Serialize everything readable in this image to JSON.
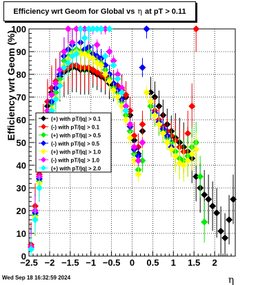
{
  "title": {
    "prefix": "Efficiency wrt Geom for Global vs",
    "symbol": "η",
    "suffix": "at pT > 0.11"
  },
  "timestamp": "Wed Sep 18 16:32:59 2024",
  "chart_data": {
    "type": "scatter",
    "title": "Efficiency wrt Geom for Global vs η at pT > 0.11",
    "xlabel": "η",
    "ylabel": "Efficiency wrt Geom (%)",
    "xlim": [
      -2.5,
      2.5
    ],
    "ylim": [
      0,
      100
    ],
    "xticks": [
      "-2.5",
      "-2",
      "-1.5",
      "-1",
      "-0.5",
      "0",
      "0.5",
      "1",
      "1.5",
      "2"
    ],
    "yticks": [
      "0",
      "10",
      "20",
      "30",
      "40",
      "50",
      "60",
      "70",
      "80",
      "90",
      "100"
    ],
    "grid": true,
    "legend_position": "left-middle",
    "series": [
      {
        "name": "(+) with pT/|q| > 0.1",
        "color": "#000000",
        "points": [
          [
            -2.45,
            4
          ],
          [
            -2.35,
            20
          ],
          [
            -2.25,
            35
          ],
          [
            -2.15,
            55
          ],
          [
            -2.05,
            66
          ],
          [
            -1.95,
            72
          ],
          [
            -1.85,
            76
          ],
          [
            -1.75,
            79
          ],
          [
            -1.65,
            81
          ],
          [
            -1.55,
            82
          ],
          [
            -1.45,
            83
          ],
          [
            -1.35,
            83
          ],
          [
            -1.25,
            82
          ],
          [
            -1.15,
            82
          ],
          [
            -1.05,
            82
          ],
          [
            -0.95,
            81
          ],
          [
            -0.85,
            80
          ],
          [
            -0.75,
            79
          ],
          [
            -0.65,
            78
          ],
          [
            -0.55,
            76
          ],
          [
            -0.45,
            75
          ],
          [
            -0.35,
            74
          ],
          [
            -0.25,
            73
          ],
          [
            -0.15,
            70
          ],
          [
            -0.05,
            62
          ],
          [
            0.05,
            51
          ],
          [
            0.15,
            45
          ],
          [
            0.25,
            55
          ],
          [
            0.45,
            72
          ],
          [
            0.55,
            70
          ],
          [
            0.65,
            66
          ],
          [
            0.75,
            62
          ],
          [
            0.85,
            58
          ],
          [
            0.95,
            55
          ],
          [
            1.05,
            52
          ],
          [
            1.15,
            50
          ],
          [
            1.25,
            48
          ],
          [
            1.35,
            46
          ],
          [
            1.45,
            43
          ],
          [
            1.55,
            35
          ],
          [
            1.65,
            30
          ],
          [
            1.75,
            27
          ],
          [
            1.85,
            25
          ],
          [
            1.95,
            22
          ],
          [
            2.05,
            19
          ],
          [
            2.15,
            11
          ],
          [
            2.25,
            8
          ],
          [
            2.35,
            16
          ],
          [
            2.45,
            25
          ]
        ]
      },
      {
        "name": "(-) with pT/|q| > 0.1",
        "color": "#ff0000",
        "points": [
          [
            -2.45,
            5
          ],
          [
            -2.35,
            22
          ],
          [
            -2.25,
            36
          ],
          [
            -2.15,
            57
          ],
          [
            -2.05,
            68
          ],
          [
            -1.95,
            74
          ],
          [
            -1.85,
            77
          ],
          [
            -1.75,
            80
          ],
          [
            -1.65,
            82
          ],
          [
            -1.55,
            83
          ],
          [
            -1.45,
            84
          ],
          [
            -1.35,
            84
          ],
          [
            -1.25,
            83
          ],
          [
            -1.15,
            83
          ],
          [
            -1.05,
            83
          ],
          [
            -0.95,
            82
          ],
          [
            -0.85,
            81
          ],
          [
            -0.75,
            80
          ],
          [
            -0.65,
            79
          ],
          [
            -0.55,
            78
          ],
          [
            -0.45,
            76
          ],
          [
            -0.35,
            75
          ],
          [
            -0.25,
            73
          ],
          [
            -0.15,
            71
          ],
          [
            -0.05,
            64
          ],
          [
            0.05,
            53
          ],
          [
            0.15,
            48
          ],
          [
            0.25,
            58
          ],
          [
            0.45,
            66
          ],
          [
            0.55,
            64
          ],
          [
            0.65,
            60
          ],
          [
            0.75,
            57
          ],
          [
            0.85,
            55
          ],
          [
            0.95,
            53
          ],
          [
            1.05,
            51
          ],
          [
            1.15,
            48
          ],
          [
            1.25,
            46
          ],
          [
            1.35,
            54
          ],
          [
            1.45,
            66
          ],
          [
            1.55,
            100
          ]
        ]
      },
      {
        "name": "(+) with pT/|q| > 0.5",
        "color": "#00ee00",
        "points": [
          [
            -2.45,
            3
          ],
          [
            -2.35,
            18
          ],
          [
            -2.25,
            33
          ],
          [
            -2.15,
            50
          ],
          [
            -2.05,
            60
          ],
          [
            -1.95,
            67
          ],
          [
            -1.85,
            72
          ],
          [
            -1.75,
            78
          ],
          [
            -1.65,
            86
          ],
          [
            -1.55,
            88
          ],
          [
            -1.45,
            90
          ],
          [
            -1.35,
            91
          ],
          [
            -1.25,
            90
          ],
          [
            -1.15,
            89
          ],
          [
            -1.05,
            90
          ],
          [
            -0.95,
            88
          ],
          [
            -0.85,
            87
          ],
          [
            -0.75,
            85
          ],
          [
            -0.65,
            82
          ],
          [
            -0.55,
            78
          ],
          [
            -0.45,
            74
          ],
          [
            -0.35,
            72
          ],
          [
            -0.25,
            68
          ],
          [
            -0.15,
            62
          ],
          [
            -0.05,
            55
          ],
          [
            0.05,
            45
          ],
          [
            0.15,
            38
          ],
          [
            0.25,
            42
          ],
          [
            0.45,
            66
          ],
          [
            0.55,
            62
          ],
          [
            0.65,
            58
          ],
          [
            0.75,
            55
          ],
          [
            0.85,
            52
          ],
          [
            0.95,
            50
          ],
          [
            1.05,
            46
          ],
          [
            1.15,
            43
          ],
          [
            1.25,
            42
          ],
          [
            1.35,
            44
          ],
          [
            1.45,
            48
          ],
          [
            1.55,
            50
          ],
          [
            1.65,
            35
          ],
          [
            1.75,
            15
          ]
        ]
      },
      {
        "name": "(-) with pT/|q| > 0.5",
        "color": "#0000ff",
        "points": [
          [
            -2.45,
            4
          ],
          [
            -2.35,
            19
          ],
          [
            -2.25,
            34
          ],
          [
            -2.15,
            52
          ],
          [
            -2.05,
            62
          ],
          [
            -1.95,
            68
          ],
          [
            -1.85,
            74
          ],
          [
            -1.75,
            80
          ],
          [
            -1.65,
            88
          ],
          [
            -1.55,
            91
          ],
          [
            -1.45,
            93
          ],
          [
            -1.35,
            90
          ],
          [
            -1.25,
            94
          ],
          [
            -1.15,
            91
          ],
          [
            -1.05,
            92
          ],
          [
            -0.95,
            89
          ],
          [
            -0.85,
            88
          ],
          [
            -0.75,
            87
          ],
          [
            -0.65,
            84
          ],
          [
            -0.55,
            80
          ],
          [
            -0.45,
            76
          ],
          [
            -0.35,
            73
          ],
          [
            -0.25,
            69
          ],
          [
            -0.15,
            64
          ],
          [
            -0.05,
            57
          ],
          [
            0.05,
            47
          ],
          [
            0.15,
            44
          ],
          [
            0.25,
            83
          ],
          [
            0.35,
            100
          ],
          [
            0.45,
            68
          ],
          [
            0.55,
            63
          ],
          [
            0.65,
            59
          ],
          [
            0.75,
            56
          ],
          [
            0.85,
            53
          ],
          [
            0.95,
            48
          ]
        ]
      },
      {
        "name": "(+) with pT/|q| > 1.0",
        "color": "#ffff00",
        "points": [
          [
            -2.45,
            3
          ],
          [
            -2.35,
            17
          ],
          [
            -2.25,
            32
          ],
          [
            -2.15,
            48
          ],
          [
            -2.05,
            58
          ],
          [
            -1.95,
            65
          ],
          [
            -1.85,
            70
          ],
          [
            -1.75,
            76
          ],
          [
            -1.65,
            84
          ],
          [
            -1.55,
            87
          ],
          [
            -1.45,
            89
          ],
          [
            -1.35,
            90
          ],
          [
            -1.25,
            89
          ],
          [
            -1.15,
            89
          ],
          [
            -1.05,
            88
          ],
          [
            -0.95,
            87
          ],
          [
            -0.85,
            85
          ],
          [
            -0.75,
            84
          ],
          [
            -0.65,
            80
          ],
          [
            -0.55,
            77
          ],
          [
            -0.45,
            73
          ],
          [
            -0.35,
            70
          ],
          [
            -0.25,
            66
          ],
          [
            -0.15,
            60
          ],
          [
            -0.05,
            52
          ],
          [
            0.05,
            42
          ],
          [
            0.15,
            36
          ],
          [
            0.25,
            50
          ],
          [
            0.35,
            72
          ],
          [
            0.45,
            68
          ],
          [
            0.55,
            62
          ],
          [
            0.65,
            58
          ],
          [
            0.75,
            54
          ],
          [
            0.85,
            50
          ],
          [
            0.95,
            47
          ],
          [
            1.05,
            44
          ],
          [
            1.15,
            41
          ],
          [
            1.25,
            40
          ],
          [
            1.35,
            42
          ],
          [
            1.45,
            45
          ],
          [
            1.55,
            47
          ]
        ]
      },
      {
        "name": "(-) with pT/|q| > 1.0",
        "color": "#ff00ff",
        "points": [
          [
            -2.45,
            4
          ],
          [
            -2.35,
            20
          ],
          [
            -2.25,
            35
          ],
          [
            -2.15,
            54
          ],
          [
            -2.05,
            64
          ],
          [
            -1.95,
            71
          ],
          [
            -1.85,
            76
          ],
          [
            -1.75,
            82
          ],
          [
            -1.65,
            90
          ],
          [
            -1.55,
            100
          ],
          [
            -1.45,
            94
          ],
          [
            -1.35,
            100
          ],
          [
            -1.25,
            100
          ],
          [
            -1.15,
            100
          ],
          [
            -1.05,
            100
          ],
          [
            -0.95,
            100
          ],
          [
            -0.85,
            93
          ],
          [
            -0.75,
            100
          ],
          [
            -0.65,
            100
          ],
          [
            -0.55,
            90
          ],
          [
            -0.45,
            86
          ],
          [
            -0.35,
            80
          ],
          [
            -0.25,
            74
          ],
          [
            -0.15,
            66
          ],
          [
            -0.05,
            58
          ],
          [
            0.05,
            48
          ],
          [
            0.15,
            42
          ],
          [
            0.25,
            50
          ]
        ]
      },
      {
        "name": "(+) with pT/|q| > 2.0",
        "color": "#00ffff",
        "points": [
          [
            -2.45,
            3
          ],
          [
            -2.35,
            16
          ],
          [
            -2.25,
            30
          ],
          [
            -2.15,
            47
          ],
          [
            -2.05,
            57
          ],
          [
            -1.95,
            64
          ],
          [
            -1.85,
            69
          ],
          [
            -1.75,
            75
          ],
          [
            -1.65,
            83
          ],
          [
            -1.55,
            85
          ],
          [
            -1.45,
            88
          ],
          [
            -1.35,
            89
          ],
          [
            -1.25,
            100
          ],
          [
            -1.15,
            96
          ],
          [
            -1.05,
            100
          ],
          [
            -0.95,
            100
          ],
          [
            -0.85,
            100
          ],
          [
            -0.75,
            100
          ],
          [
            -0.65,
            88
          ],
          [
            -0.55,
            100
          ],
          [
            -0.45,
            84
          ],
          [
            -0.35,
            78
          ],
          [
            -0.25,
            72
          ],
          [
            -0.15,
            64
          ]
        ]
      }
    ]
  }
}
